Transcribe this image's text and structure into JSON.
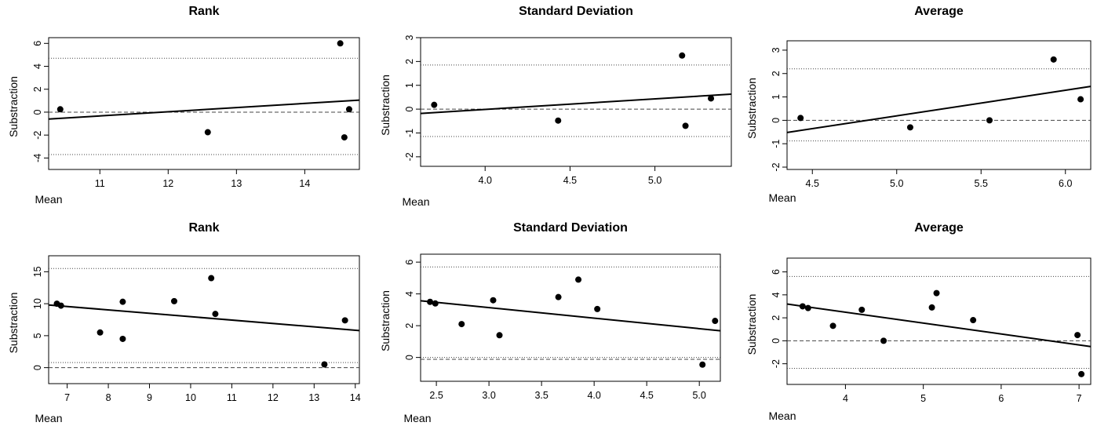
{
  "chart_data": [
    {
      "type": "scatter",
      "title": "Rank",
      "xlabel": "Mean",
      "ylabel": "Substraction",
      "xlim": [
        10.25,
        14.8
      ],
      "ylim": [
        -5,
        6.5
      ],
      "xticks": [
        11,
        12,
        13,
        14
      ],
      "yticks": [
        -4,
        -2,
        0,
        2,
        4,
        6
      ],
      "x": [
        10.42,
        12.58,
        14.52,
        14.58,
        14.65
      ],
      "y": [
        0.25,
        -1.75,
        6.0,
        -2.2,
        0.25
      ],
      "mean_difference": 0,
      "upper_limit": 4.7,
      "lower_limit": -3.7,
      "regression_line": [
        [
          10.25,
          -0.6
        ],
        [
          14.8,
          1.05
        ]
      ],
      "grid": false
    },
    {
      "type": "scatter",
      "title": "Standard Deviation",
      "xlabel": "Mean",
      "ylabel": "Substraction",
      "xlim": [
        3.62,
        5.45
      ],
      "ylim": [
        -2.4,
        3.0
      ],
      "xticks": [
        4.0,
        4.5,
        5.0
      ],
      "yticks": [
        -2,
        -1,
        0,
        1,
        2,
        3
      ],
      "x": [
        3.7,
        4.43,
        5.16,
        5.18,
        5.33
      ],
      "y": [
        0.18,
        -0.48,
        2.25,
        -0.7,
        0.45
      ],
      "mean_difference": 0,
      "upper_limit": 1.85,
      "lower_limit": -1.15,
      "regression_line": [
        [
          3.62,
          -0.18
        ],
        [
          5.45,
          0.63
        ]
      ],
      "grid": false
    },
    {
      "type": "scatter",
      "title": "Average",
      "xlabel": "Mean",
      "ylabel": "Substraction",
      "xlim": [
        4.35,
        6.15
      ],
      "ylim": [
        -2.1,
        3.4
      ],
      "xticks": [
        4.5,
        5.0,
        5.5,
        6.0
      ],
      "yticks": [
        -2,
        -1,
        0,
        1,
        2,
        3
      ],
      "x": [
        4.43,
        5.08,
        5.55,
        5.93,
        6.09
      ],
      "y": [
        0.1,
        -0.3,
        0.0,
        2.6,
        0.9
      ],
      "mean_difference": 0,
      "upper_limit": 2.2,
      "lower_limit": -0.88,
      "regression_line": [
        [
          4.35,
          -0.52
        ],
        [
          6.15,
          1.45
        ]
      ],
      "grid": false
    },
    {
      "type": "scatter",
      "title": "Rank",
      "xlabel": "Mean",
      "ylabel": "Substraction",
      "xlim": [
        6.55,
        14.1
      ],
      "ylim": [
        -2.5,
        17.5
      ],
      "xticks": [
        7,
        8,
        9,
        10,
        11,
        12,
        13,
        14
      ],
      "yticks": [
        0,
        5,
        10,
        15
      ],
      "x": [
        6.75,
        6.85,
        7.8,
        8.35,
        8.35,
        9.6,
        10.5,
        10.6,
        13.25,
        13.75
      ],
      "y": [
        10.0,
        9.7,
        5.5,
        4.5,
        10.3,
        10.4,
        14.0,
        8.4,
        0.5,
        7.4
      ],
      "mean_difference": 0,
      "upper_limit": 15.5,
      "lower_limit": 0.8,
      "regression_line": [
        [
          6.55,
          9.8
        ],
        [
          14.1,
          5.8
        ]
      ],
      "grid": false
    },
    {
      "type": "scatter",
      "title": "Standard Deviation",
      "xlabel": "Mean",
      "ylabel": "Substraction",
      "xlim": [
        2.35,
        5.2
      ],
      "ylim": [
        -1.5,
        6.5
      ],
      "xticks": [
        2.5,
        3.0,
        3.5,
        4.0,
        4.5,
        5.0
      ],
      "yticks": [
        0,
        2,
        4,
        6
      ],
      "x": [
        2.44,
        2.49,
        2.74,
        3.04,
        3.1,
        3.66,
        3.85,
        4.03,
        5.03,
        5.15
      ],
      "y": [
        3.5,
        3.4,
        2.1,
        3.6,
        1.4,
        3.8,
        4.9,
        3.05,
        -0.45,
        2.3
      ],
      "mean_difference": -0.12,
      "upper_limit": 5.7,
      "lower_limit": 0,
      "regression_line": [
        [
          2.35,
          3.57
        ],
        [
          5.2,
          1.68
        ]
      ],
      "grid": false
    },
    {
      "type": "scatter",
      "title": "Average",
      "xlabel": "Mean",
      "ylabel": "Substraction",
      "xlim": [
        3.25,
        7.15
      ],
      "ylim": [
        -3.8,
        7.2
      ],
      "xticks": [
        4,
        5,
        6,
        7
      ],
      "yticks": [
        -2,
        0,
        2,
        4,
        6
      ],
      "x": [
        3.45,
        3.52,
        3.84,
        4.21,
        4.49,
        5.11,
        5.17,
        5.64,
        6.98,
        7.03
      ],
      "y": [
        3.0,
        2.85,
        1.3,
        2.7,
        0.0,
        2.9,
        4.15,
        1.8,
        0.5,
        -2.9
      ],
      "mean_difference": 0,
      "upper_limit": 5.6,
      "lower_limit": -2.4,
      "regression_line": [
        [
          3.25,
          3.2
        ],
        [
          7.15,
          -0.5
        ]
      ],
      "grid": false
    }
  ]
}
